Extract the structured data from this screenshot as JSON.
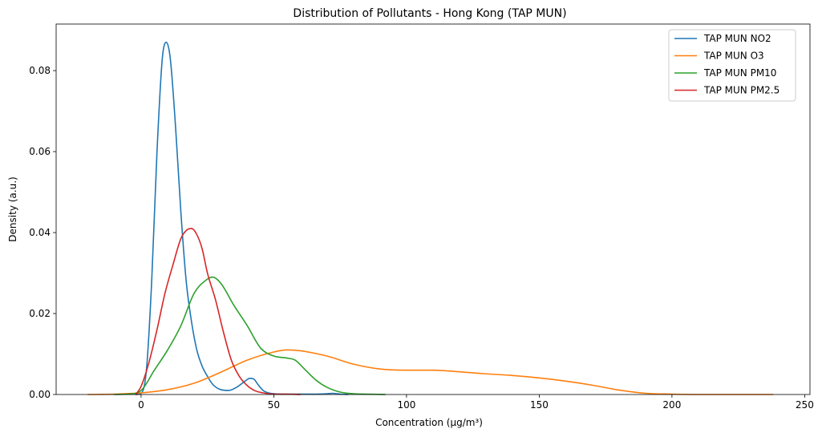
{
  "chart_data": {
    "type": "line",
    "title": "Distribution of Pollutants - Hong Kong (TAP MUN)",
    "xlabel": "Concentration (µg/m³)",
    "ylabel": "Density (a.u.)",
    "xlim": [
      -32,
      252
    ],
    "ylim": [
      0,
      0.0915
    ],
    "xticks": [
      0,
      50,
      100,
      150,
      200,
      250
    ],
    "yticks": [
      0.0,
      0.02,
      0.04,
      0.06,
      0.08
    ],
    "ytick_labels": [
      "0.00",
      "0.02",
      "0.04",
      "0.06",
      "0.08"
    ],
    "grid": false,
    "legend_position": "top-right",
    "series": [
      {
        "name": "TAP MUN NO2",
        "color": "#1f77b4",
        "x": [
          -2,
          0,
          2,
          4,
          6,
          8,
          9.5,
          11,
          13,
          15,
          17,
          19,
          21,
          23,
          25,
          27,
          30,
          33,
          36,
          39,
          41,
          42.5,
          44,
          46,
          48,
          50,
          55,
          60,
          65,
          70,
          72,
          75,
          78
        ],
        "y": [
          0,
          0.0003,
          0.006,
          0.028,
          0.06,
          0.083,
          0.087,
          0.083,
          0.066,
          0.045,
          0.028,
          0.018,
          0.011,
          0.007,
          0.0045,
          0.0025,
          0.0012,
          0.001,
          0.0018,
          0.0032,
          0.004,
          0.0038,
          0.0025,
          0.001,
          0.0004,
          0.0002,
          0.0001,
          0.0001,
          0.0001,
          0.0002,
          0.0003,
          0.0001,
          0
        ]
      },
      {
        "name": "TAP MUN O3",
        "color": "#ff7f0e",
        "x": [
          -20,
          -10,
          0,
          10,
          20,
          30,
          40,
          50,
          55,
          60,
          70,
          80,
          90,
          100,
          110,
          120,
          130,
          140,
          150,
          160,
          170,
          180,
          190,
          200,
          210,
          220,
          238
        ],
        "y": [
          0,
          0.0001,
          0.0004,
          0.0012,
          0.0028,
          0.0055,
          0.0085,
          0.0105,
          0.011,
          0.0108,
          0.0095,
          0.0075,
          0.0063,
          0.006,
          0.006,
          0.0056,
          0.0051,
          0.0047,
          0.0041,
          0.0033,
          0.0023,
          0.0011,
          0.0003,
          0.0001,
          0,
          0,
          0
        ]
      },
      {
        "name": "TAP MUN PM10",
        "color": "#2ca02c",
        "x": [
          -10,
          -5,
          0,
          5,
          10,
          15,
          20,
          25,
          27,
          30,
          35,
          40,
          45,
          50,
          55,
          58,
          62,
          66,
          70,
          75,
          80,
          85,
          92
        ],
        "y": [
          0,
          0.0001,
          0.001,
          0.006,
          0.011,
          0.017,
          0.025,
          0.0285,
          0.029,
          0.0275,
          0.022,
          0.017,
          0.0115,
          0.0095,
          0.009,
          0.0085,
          0.006,
          0.0035,
          0.0018,
          0.0006,
          0.0002,
          0.0001,
          0
        ]
      },
      {
        "name": "TAP MUN PM2.5",
        "color": "#d62728",
        "x": [
          -2,
          0,
          3,
          6,
          9,
          12,
          15,
          17,
          19,
          21,
          23,
          25,
          28,
          31,
          34,
          37,
          40,
          43,
          46,
          50,
          55,
          60
        ],
        "y": [
          0,
          0.002,
          0.008,
          0.016,
          0.025,
          0.032,
          0.0385,
          0.0405,
          0.041,
          0.0395,
          0.036,
          0.03,
          0.0235,
          0.0155,
          0.0085,
          0.0045,
          0.0022,
          0.0009,
          0.0004,
          0.0001,
          0.0001,
          0
        ]
      }
    ]
  }
}
